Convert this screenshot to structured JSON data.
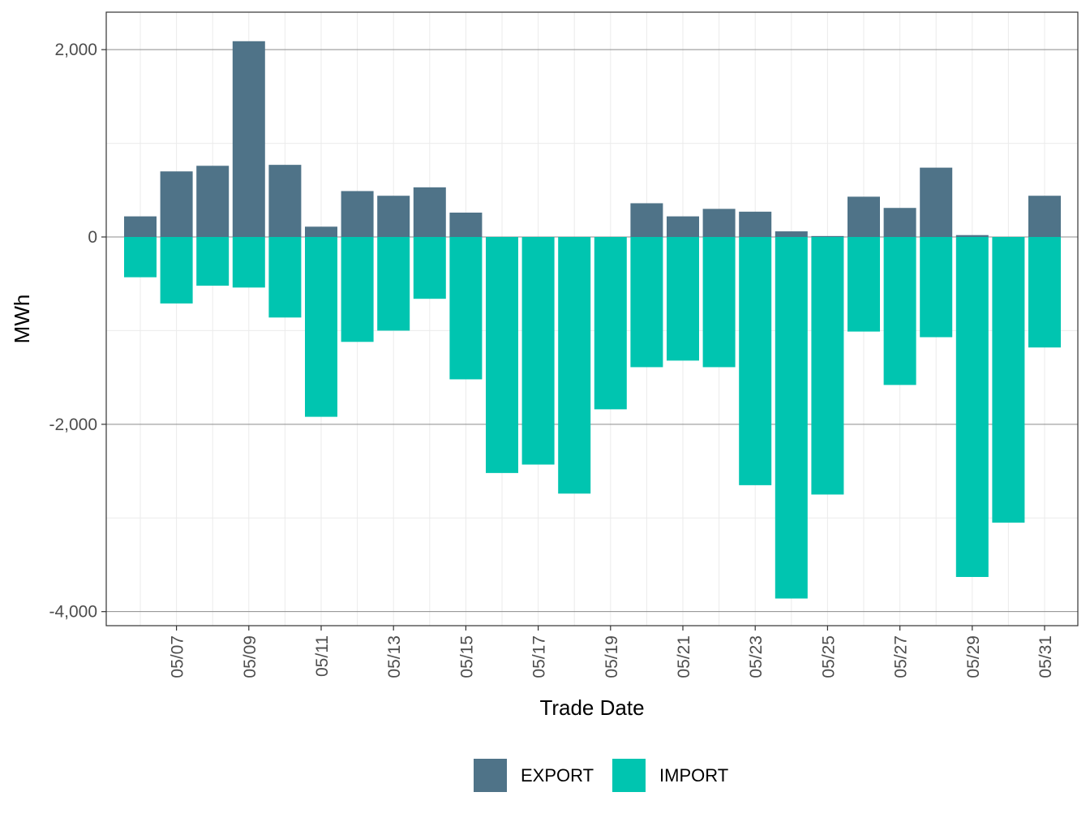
{
  "chart_data": {
    "type": "bar",
    "stacked": true,
    "xlabel": "Trade Date",
    "ylabel": "MWh",
    "ylim": [
      -4150,
      2400
    ],
    "y_ticks": [
      {
        "value": 2000,
        "label": "2,000"
      },
      {
        "value": 0,
        "label": "0"
      },
      {
        "value": -2000,
        "label": "-2,000"
      },
      {
        "value": -4000,
        "label": "-4,000"
      }
    ],
    "y_minor_ticks": [
      1000,
      -1000,
      -3000
    ],
    "categories": [
      "05/06",
      "05/07",
      "05/08",
      "05/09",
      "05/10",
      "05/11",
      "05/12",
      "05/13",
      "05/14",
      "05/15",
      "05/16",
      "05/17",
      "05/18",
      "05/19",
      "05/20",
      "05/21",
      "05/22",
      "05/23",
      "05/24",
      "05/25",
      "05/26",
      "05/27",
      "05/28",
      "05/29",
      "05/30",
      "05/31"
    ],
    "x_tick_labels": [
      "05/07",
      "05/09",
      "05/11",
      "05/13",
      "05/15",
      "05/17",
      "05/19",
      "05/21",
      "05/23",
      "05/25",
      "05/27",
      "05/29",
      "05/31"
    ],
    "grid": true,
    "legend": "bottom",
    "series": [
      {
        "name": "EXPORT",
        "color": "#4f7388",
        "values": [
          220,
          700,
          760,
          2090,
          770,
          110,
          490,
          440,
          530,
          260,
          0,
          0,
          0,
          0,
          360,
          220,
          300,
          270,
          60,
          10,
          430,
          310,
          740,
          20,
          0,
          440
        ]
      },
      {
        "name": "IMPORT",
        "color": "#00c5b0",
        "values": [
          -430,
          -710,
          -520,
          -540,
          -860,
          -1920,
          -1120,
          -1000,
          -660,
          -1520,
          -2520,
          -2430,
          -2740,
          -1840,
          -1390,
          -1320,
          -1390,
          -2650,
          -3860,
          -2750,
          -1010,
          -1580,
          -1070,
          -3630,
          -3050,
          -1180
        ]
      }
    ]
  }
}
